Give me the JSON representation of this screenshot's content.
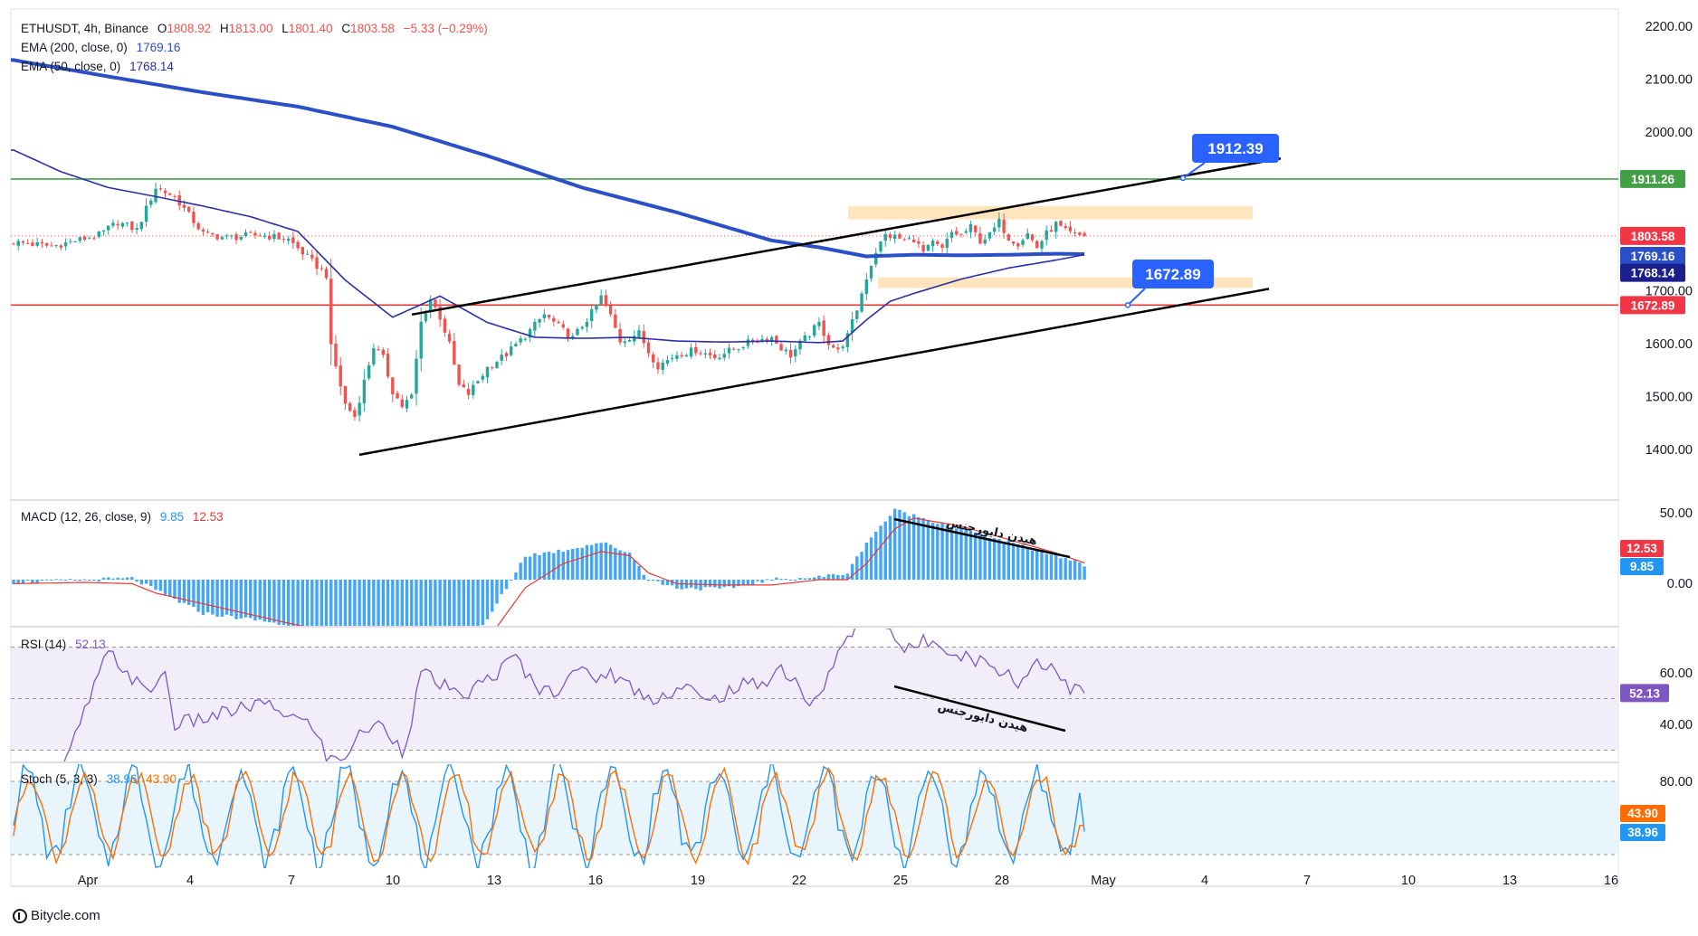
{
  "symbol_info": {
    "symbol": "ETHUSDT, 4h, Binance",
    "open_label": "O",
    "open": "1808.92",
    "high_label": "H",
    "high": "1813.00",
    "low_label": "L",
    "low": "1801.40",
    "close_label": "C",
    "close": "1803.58",
    "change": "−5.33 (−0.29%)"
  },
  "ema_legends": [
    {
      "label": "EMA (200, close, 0)",
      "value": "1769.16"
    },
    {
      "label": "EMA (50, close, 0)",
      "value": "1768.14"
    }
  ],
  "macd_legend": {
    "label": "MACD (12, 26, close, 9)",
    "macd": "9.85",
    "signal": "12.53"
  },
  "rsi_legend": {
    "label": "RSI (14)",
    "value": "52.13"
  },
  "stoch_legend": {
    "label": "Stoch (5, 3, 3)",
    "k": "38.96",
    "d": "43.90"
  },
  "brand": "Bitycle.com",
  "annotations": {
    "divergence_macd": "هیدن دایورجنس",
    "divergence_rsi": "هیدن دایورجنس",
    "callout_top": "1912.39",
    "callout_bottom": "1672.89"
  },
  "colors": {
    "up": "#26a69a",
    "down": "#ef5350",
    "ema200": "#2b4fc7",
    "ema50": "#2b2fa8",
    "macd_hist": "#42a5f5",
    "macd_signal": "#e53935",
    "rsi": "#7e57c2",
    "stoch_k": "#2196f3",
    "stoch_d": "#ff6d00",
    "callout": "#2962ff",
    "resistance": "#43a047",
    "support": "#e53935",
    "zone": "#ffe0b2"
  },
  "chart_data": [
    {
      "type": "candlestick",
      "title": "ETHUSDT, 4h, Binance",
      "x_tick_labels": [
        "Apr",
        "4",
        "7",
        "10",
        "13",
        "16",
        "19",
        "22",
        "25",
        "28",
        "May",
        "4",
        "7",
        "10",
        "13",
        "16"
      ],
      "y_tick_labels": [
        "2200.00",
        "2100.00",
        "2000.00",
        "1700.00",
        "1600.00",
        "1500.00",
        "1400.00"
      ],
      "ylim": [
        1355,
        2210
      ],
      "price_series_waypoints": [
        [
          0,
          1792
        ],
        [
          8,
          1784
        ],
        [
          18,
          1805
        ],
        [
          22,
          1830
        ],
        [
          26,
          1815
        ],
        [
          30,
          1895
        ],
        [
          34,
          1878
        ],
        [
          40,
          1808
        ],
        [
          45,
          1800
        ],
        [
          52,
          1806
        ],
        [
          58,
          1797
        ],
        [
          63,
          1755
        ],
        [
          66,
          1730
        ],
        [
          67,
          1592
        ],
        [
          70,
          1485
        ],
        [
          72,
          1462
        ],
        [
          76,
          1595
        ],
        [
          78,
          1572
        ],
        [
          80,
          1510
        ],
        [
          82,
          1482
        ],
        [
          84,
          1500
        ],
        [
          86,
          1640
        ],
        [
          88,
          1685
        ],
        [
          90,
          1650
        ],
        [
          92,
          1598
        ],
        [
          94,
          1520
        ],
        [
          96,
          1505
        ],
        [
          100,
          1555
        ],
        [
          104,
          1580
        ],
        [
          108,
          1615
        ],
        [
          112,
          1655
        ],
        [
          116,
          1625
        ],
        [
          118,
          1610
        ],
        [
          122,
          1658
        ],
        [
          124,
          1688
        ],
        [
          126,
          1652
        ],
        [
          128,
          1605
        ],
        [
          132,
          1620
        ],
        [
          134,
          1585
        ],
        [
          136,
          1558
        ],
        [
          140,
          1580
        ],
        [
          144,
          1588
        ],
        [
          148,
          1575
        ],
        [
          152,
          1590
        ],
        [
          156,
          1605
        ],
        [
          160,
          1612
        ],
        [
          162,
          1592
        ],
        [
          164,
          1578
        ],
        [
          166,
          1600
        ],
        [
          170,
          1638
        ],
        [
          172,
          1602
        ],
        [
          174,
          1585
        ],
        [
          176,
          1615
        ],
        [
          178,
          1665
        ],
        [
          180,
          1725
        ],
        [
          182,
          1775
        ],
        [
          184,
          1805
        ],
        [
          186,
          1802
        ],
        [
          188,
          1795
        ],
        [
          190,
          1798
        ],
        [
          192,
          1772
        ],
        [
          194,
          1790
        ],
        [
          196,
          1778
        ],
        [
          198,
          1810
        ],
        [
          200,
          1805
        ],
        [
          202,
          1820
        ],
        [
          204,
          1795
        ],
        [
          206,
          1805
        ],
        [
          208,
          1830
        ],
        [
          210,
          1800
        ],
        [
          212,
          1790
        ],
        [
          214,
          1808
        ],
        [
          216,
          1782
        ],
        [
          218,
          1808
        ],
        [
          220,
          1826
        ],
        [
          222,
          1812
        ],
        [
          224,
          1805
        ],
        [
          226,
          1803.58
        ]
      ],
      "ema200_waypoints": [
        [
          0,
          2136
        ],
        [
          20,
          2105
        ],
        [
          40,
          2075
        ],
        [
          60,
          2048
        ],
        [
          80,
          2010
        ],
        [
          100,
          1955
        ],
        [
          120,
          1895
        ],
        [
          140,
          1848
        ],
        [
          160,
          1795
        ],
        [
          170,
          1782
        ],
        [
          180,
          1765
        ],
        [
          190,
          1768
        ],
        [
          200,
          1767
        ],
        [
          210,
          1768
        ],
        [
          220,
          1770
        ],
        [
          226,
          1769.16
        ]
      ],
      "ema50_waypoints": [
        [
          0,
          1966
        ],
        [
          10,
          1925
        ],
        [
          20,
          1895
        ],
        [
          30,
          1878
        ],
        [
          40,
          1860
        ],
        [
          50,
          1840
        ],
        [
          60,
          1812
        ],
        [
          70,
          1720
        ],
        [
          80,
          1650
        ],
        [
          90,
          1690
        ],
        [
          100,
          1640
        ],
        [
          110,
          1612
        ],
        [
          120,
          1610
        ],
        [
          130,
          1612
        ],
        [
          140,
          1605
        ],
        [
          150,
          1603
        ],
        [
          160,
          1605
        ],
        [
          170,
          1602
        ],
        [
          175,
          1605
        ],
        [
          180,
          1645
        ],
        [
          185,
          1680
        ],
        [
          190,
          1695
        ],
        [
          200,
          1722
        ],
        [
          210,
          1743
        ],
        [
          220,
          1758
        ],
        [
          226,
          1768.14
        ]
      ],
      "levels": [
        {
          "name": "resistance",
          "price_label": "1911.26",
          "value": 1911.26
        },
        {
          "name": "last-price",
          "price_label": "1803.58",
          "value": 1803.58
        },
        {
          "name": "ema200-tag",
          "price_label": "1769.16",
          "value": 1769.16
        },
        {
          "name": "ema50-tag",
          "price_label": "1768.14",
          "value": 1768.14
        },
        {
          "name": "support",
          "price_label": "1672.89",
          "value": 1672.89
        }
      ],
      "channel": {
        "upper": [
          [
            1655,
            1911
          ],
          [
            1912.39,
            1912.39
          ]
        ],
        "lower": [
          1390,
          1672.89
        ]
      }
    },
    {
      "type": "bar",
      "title": "MACD (12, 26, close, 9)",
      "y_tick_labels": [
        "50.00",
        "0.00"
      ],
      "ylim": [
        -85,
        60
      ],
      "histogram_waypoints": [
        [
          0,
          -2
        ],
        [
          25,
          1
        ],
        [
          30,
          -8
        ],
        [
          40,
          -25
        ],
        [
          55,
          -32
        ],
        [
          62,
          -40
        ],
        [
          70,
          -78
        ],
        [
          80,
          -95
        ],
        [
          92,
          -70
        ],
        [
          100,
          -30
        ],
        [
          108,
          18
        ],
        [
          116,
          22
        ],
        [
          124,
          28
        ],
        [
          130,
          20
        ],
        [
          134,
          0
        ],
        [
          140,
          -6
        ],
        [
          150,
          -7
        ],
        [
          160,
          0
        ],
        [
          170,
          2
        ],
        [
          176,
          5
        ],
        [
          180,
          28
        ],
        [
          186,
          52
        ],
        [
          190,
          48
        ],
        [
          200,
          38
        ],
        [
          210,
          28
        ],
        [
          220,
          18
        ],
        [
          226,
          12
        ]
      ],
      "signal_waypoints": [
        [
          0,
          -3
        ],
        [
          15,
          -2
        ],
        [
          25,
          -3
        ],
        [
          30,
          -10
        ],
        [
          45,
          -22
        ],
        [
          55,
          -30
        ],
        [
          65,
          -38
        ],
        [
          75,
          -60
        ],
        [
          85,
          -85
        ],
        [
          100,
          -45
        ],
        [
          108,
          -6
        ],
        [
          116,
          12
        ],
        [
          124,
          21
        ],
        [
          130,
          18
        ],
        [
          134,
          5
        ],
        [
          140,
          -3
        ],
        [
          150,
          -4
        ],
        [
          160,
          -4
        ],
        [
          170,
          0
        ],
        [
          176,
          0
        ],
        [
          180,
          12
        ],
        [
          186,
          38
        ],
        [
          190,
          46
        ],
        [
          200,
          40
        ],
        [
          210,
          30
        ],
        [
          220,
          20
        ],
        [
          226,
          12.53
        ]
      ]
    },
    {
      "type": "line",
      "title": "RSI (14)",
      "y_tick_labels": [
        "60.00",
        "40.00"
      ],
      "ylim": [
        20,
        90
      ],
      "rsi_waypoints": [
        [
          0,
          18
        ],
        [
          10,
          20
        ],
        [
          15,
          45
        ],
        [
          20,
          68
        ],
        [
          24,
          60
        ],
        [
          28,
          52
        ],
        [
          32,
          60
        ],
        [
          34,
          40
        ],
        [
          40,
          42
        ],
        [
          46,
          45
        ],
        [
          52,
          48
        ],
        [
          58,
          44
        ],
        [
          64,
          38
        ],
        [
          66,
          26
        ],
        [
          70,
          28
        ],
        [
          74,
          38
        ],
        [
          78,
          40
        ],
        [
          82,
          30
        ],
        [
          84,
          42
        ],
        [
          86,
          60
        ],
        [
          90,
          56
        ],
        [
          94,
          50
        ],
        [
          98,
          55
        ],
        [
          102,
          60
        ],
        [
          106,
          66
        ],
        [
          110,
          55
        ],
        [
          114,
          52
        ],
        [
          118,
          62
        ],
        [
          122,
          58
        ],
        [
          126,
          60
        ],
        [
          130,
          55
        ],
        [
          134,
          50
        ],
        [
          138,
          52
        ],
        [
          142,
          55
        ],
        [
          146,
          48
        ],
        [
          150,
          52
        ],
        [
          154,
          55
        ],
        [
          158,
          56
        ],
        [
          162,
          62
        ],
        [
          166,
          55
        ],
        [
          168,
          46
        ],
        [
          170,
          50
        ],
        [
          172,
          60
        ],
        [
          174,
          68
        ],
        [
          176,
          72
        ],
        [
          180,
          85
        ],
        [
          184,
          80
        ],
        [
          188,
          68
        ],
        [
          192,
          72
        ],
        [
          196,
          72
        ],
        [
          198,
          68
        ],
        [
          202,
          66
        ],
        [
          206,
          63
        ],
        [
          210,
          60
        ],
        [
          212,
          55
        ],
        [
          216,
          65
        ],
        [
          220,
          62
        ],
        [
          222,
          55
        ],
        [
          226,
          52.13
        ]
      ]
    },
    {
      "type": "line",
      "title": "Stoch (5, 3, 3)",
      "y_tick_labels": [
        "80.00"
      ],
      "ylim": [
        0,
        110
      ],
      "k_last": 38.96,
      "d_last": 43.9
    }
  ]
}
